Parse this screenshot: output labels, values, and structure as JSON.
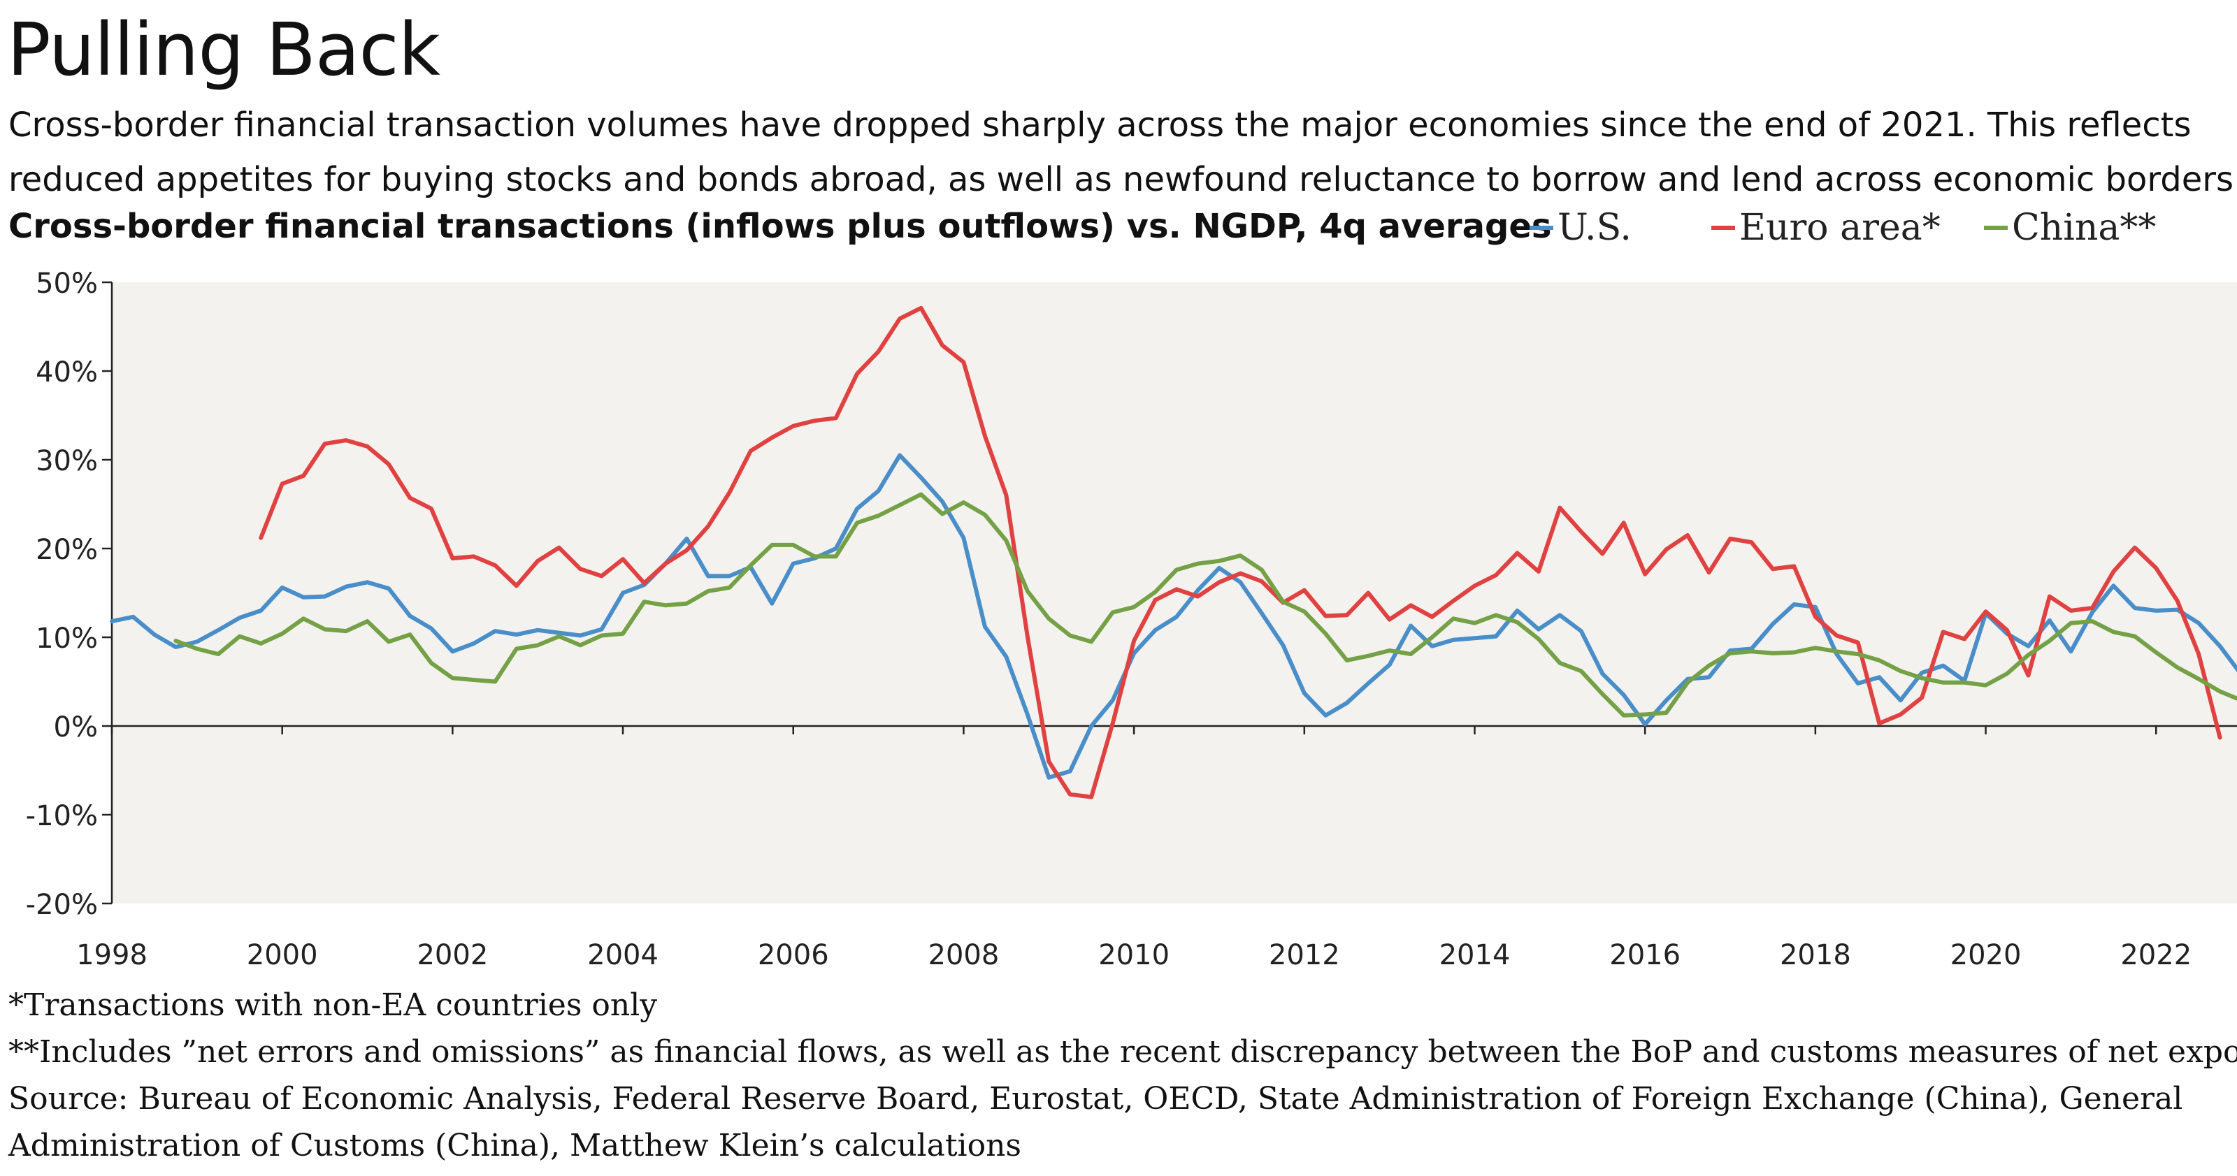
{
  "title": "Pulling Back",
  "subtitle": {
    "line1": "Cross-border financial transaction volumes have dropped sharply across the major economies since the end of 2021. This reflects",
    "line2": "reduced appetites for buying stocks and bonds abroad, as well as newfound reluctance to borrow and lend across economic borders."
  },
  "notes": {
    "note1": "*Transactions with non-EA countries only",
    "note2": "**Includes ”net errors and omissions” as financial flows, as well as the recent discrepancy between the BoP and customs measures of net exports",
    "source1": "Source: Bureau of Economic Analysis, Federal Reserve Board, Eurostat, OECD, State Administration of Foreign Exchange (China), General",
    "source2": "Administration of Customs (China), Matthew Klein’s calculations"
  },
  "colors": {
    "us": "#4a8ec9",
    "euro": "#e04141",
    "china": "#75a146",
    "plot_bg": "#f3f2ef",
    "axis": "#222222"
  },
  "chart_data": {
    "type": "line",
    "title": "Cross-border financial transactions (inflows plus outflows) vs. NGDP, 4q averages",
    "xlabel": "",
    "ylabel": "",
    "xlim": [
      1998,
      2022.95
    ],
    "ylim": [
      -20,
      50
    ],
    "y_ticks": [
      -20,
      -10,
      0,
      10,
      20,
      30,
      40,
      50
    ],
    "y_tick_labels": [
      "-20%",
      "-10%",
      "0%",
      "10%",
      "20%",
      "30%",
      "40%",
      "50%"
    ],
    "x_ticks": [
      1998,
      2000,
      2002,
      2004,
      2006,
      2008,
      2010,
      2012,
      2014,
      2016,
      2018,
      2020,
      2022
    ],
    "x_tick_labels": [
      "1998",
      "2000",
      "2002",
      "2004",
      "2006",
      "2008",
      "2010",
      "2012",
      "2014",
      "2016",
      "2018",
      "2020",
      "2022"
    ],
    "legend_position": "top-right",
    "series": [
      {
        "name": "U.S.",
        "color_key": "us",
        "start": 1998.0,
        "step": 0.25,
        "values": [
          11.8,
          12.3,
          10.3,
          8.9,
          9.5,
          10.8,
          12.2,
          13.0,
          15.6,
          14.5,
          14.6,
          15.7,
          16.2,
          15.5,
          12.4,
          11.0,
          8.4,
          9.3,
          10.7,
          10.3,
          10.8,
          10.5,
          10.2,
          10.9,
          15.0,
          15.9,
          18.3,
          21.1,
          16.9,
          16.9,
          17.9,
          13.8,
          18.3,
          18.9,
          20.0,
          24.5,
          26.5,
          30.5,
          28.0,
          25.3,
          21.2,
          11.2,
          7.8,
          1.3,
          -5.8,
          -5.1,
          0.0,
          2.9,
          8.2,
          10.8,
          12.3,
          15.3,
          17.8,
          16.2,
          12.7,
          9.1,
          3.7,
          1.2,
          2.6,
          4.8,
          6.9,
          11.3,
          9.0,
          9.7,
          9.9,
          10.1,
          13.0,
          10.9,
          12.5,
          10.7,
          5.9,
          3.5,
          0.2,
          2.9,
          5.3,
          5.5,
          8.5,
          8.7,
          11.5,
          13.7,
          13.4,
          8.1,
          4.8,
          5.5,
          2.9,
          6.0,
          6.8,
          5.1,
          12.7,
          10.4,
          9.0,
          11.9,
          8.4,
          12.8,
          15.8,
          13.3,
          13.0,
          13.1,
          11.6,
          9.0,
          5.8
        ]
      },
      {
        "name": "Euro area*",
        "color_key": "euro",
        "start": 1999.75,
        "step": 0.25,
        "values": [
          21.2,
          27.3,
          28.2,
          31.8,
          32.2,
          31.5,
          29.5,
          25.7,
          24.5,
          18.9,
          19.1,
          18.1,
          15.8,
          18.6,
          20.1,
          17.7,
          16.9,
          18.8,
          16.1,
          18.3,
          19.8,
          22.5,
          26.3,
          31.0,
          32.5,
          33.8,
          34.4,
          34.7,
          39.7,
          42.2,
          45.9,
          47.1,
          42.9,
          41.0,
          32.7,
          26.0,
          10.1,
          -4.0,
          -7.7,
          -8.0,
          0.3,
          9.6,
          14.2,
          15.4,
          14.6,
          16.2,
          17.2,
          16.3,
          13.9,
          15.3,
          12.4,
          12.5,
          15.0,
          12.0,
          13.6,
          12.3,
          14.1,
          15.8,
          17.0,
          19.5,
          17.4,
          24.6,
          21.9,
          19.4,
          22.9,
          17.1,
          19.9,
          21.5,
          17.3,
          21.1,
          20.7,
          17.7,
          18.0,
          12.3,
          10.2,
          9.4,
          0.3,
          1.3,
          3.2,
          10.6,
          9.8,
          12.9,
          10.8,
          5.7,
          14.6,
          13.0,
          13.3,
          17.4,
          20.1,
          17.8,
          14.1,
          8.1,
          -1.3
        ]
      },
      {
        "name": "China**",
        "color_key": "china",
        "start": 1998.75,
        "step": 0.25,
        "values": [
          9.6,
          8.7,
          8.1,
          10.1,
          9.3,
          10.4,
          12.1,
          10.9,
          10.7,
          11.8,
          9.5,
          10.3,
          7.1,
          5.4,
          5.2,
          5.0,
          8.7,
          9.1,
          10.1,
          9.1,
          10.2,
          10.4,
          14.0,
          13.6,
          13.8,
          15.2,
          15.6,
          18.1,
          20.4,
          20.4,
          19.1,
          19.1,
          22.9,
          23.7,
          24.9,
          26.1,
          23.9,
          25.2,
          23.8,
          20.9,
          15.2,
          12.1,
          10.2,
          9.5,
          12.8,
          13.4,
          15.1,
          17.6,
          18.3,
          18.6,
          19.2,
          17.6,
          14.0,
          12.9,
          10.4,
          7.4,
          7.9,
          8.5,
          8.1,
          10.0,
          12.1,
          11.6,
          12.5,
          11.7,
          9.8,
          7.1,
          6.2,
          3.6,
          1.2,
          1.3,
          1.5,
          4.9,
          6.8,
          8.2,
          8.4,
          8.2,
          8.3,
          8.8,
          8.4,
          8.1,
          7.4,
          6.2,
          5.4,
          4.9,
          4.9,
          4.6,
          5.9,
          8.0,
          9.6,
          11.6,
          11.8,
          10.6,
          10.1,
          8.3,
          6.6,
          5.3,
          3.9,
          2.9
        ]
      }
    ]
  }
}
